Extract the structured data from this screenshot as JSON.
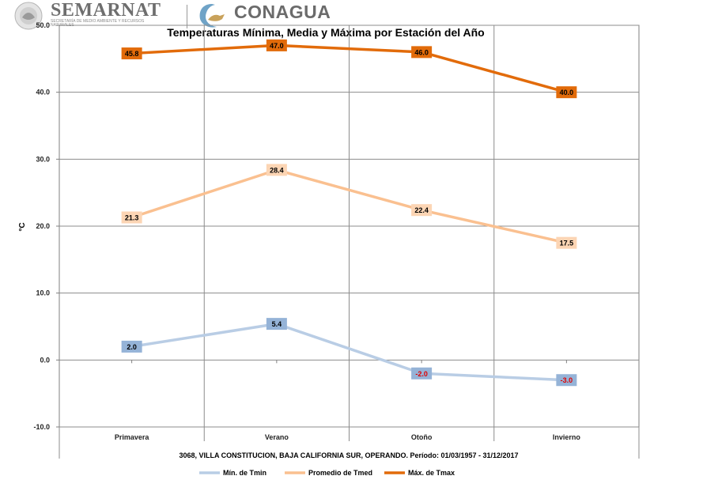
{
  "header": {
    "semarnat_name": "SEMARNAT",
    "semarnat_sub": "SECRETARÍA DE MEDIO AMBIENTE Y RECURSOS NATURALES",
    "conagua_name": "CONAGUA"
  },
  "chart_data": {
    "type": "line",
    "title": "Temperaturas Mínima, Media y Máxima por Estación del Año",
    "subtitle": "3068, VILLA CONSTITUCION, BAJA CALIFORNIA SUR, OPERANDO. Período: 01/03/1957 - 31/12/2017",
    "ylabel": "°C",
    "xlabel": "",
    "ylim": [
      -10,
      50
    ],
    "yticks": [
      "50.0",
      "40.0",
      "30.0",
      "20.0",
      "10.0",
      "0.0",
      "-10.0"
    ],
    "ytick_values": [
      50,
      40,
      30,
      20,
      10,
      0,
      -10
    ],
    "categories": [
      "Primavera",
      "Verano",
      "Otoño",
      "Invierno"
    ],
    "grid": true,
    "legend_position": "bottom",
    "series": [
      {
        "name": "Mín. de Tmin",
        "values": [
          2.0,
          5.4,
          -2.0,
          -3.0
        ],
        "labels": [
          "2.0",
          "5.4",
          "-2.0",
          "-3.0"
        ],
        "color": "#b9cde5",
        "label_bg": "#95b3d7",
        "label_color": "#000000",
        "negative_label_color": "#e00000"
      },
      {
        "name": "Promedio de Tmed",
        "values": [
          21.3,
          28.4,
          22.4,
          17.5
        ],
        "labels": [
          "21.3",
          "28.4",
          "22.4",
          "17.5"
        ],
        "color": "#fac090",
        "label_bg": "#fcd5b4",
        "label_color": "#000000",
        "negative_label_color": "#e00000"
      },
      {
        "name": "Máx. de Tmax",
        "values": [
          45.8,
          47.0,
          46.0,
          40.0
        ],
        "labels": [
          "45.8",
          "47.0",
          "46.0",
          "40.0"
        ],
        "color": "#e26b0a",
        "label_bg": "#e26b0a",
        "label_color": "#000000",
        "negative_label_color": "#e00000"
      }
    ]
  }
}
